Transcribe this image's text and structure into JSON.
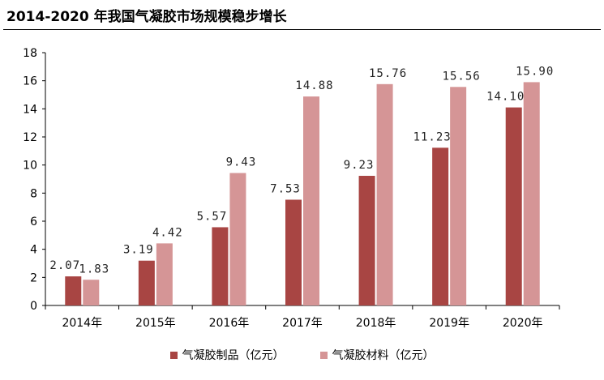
{
  "chart_data": {
    "type": "bar",
    "title": "2014-2020 年我国气凝胶市场规模稳步增长",
    "categories": [
      "2014年",
      "2015年",
      "2016年",
      "2017年",
      "2018年",
      "2019年",
      "2020年"
    ],
    "series": [
      {
        "name": "气凝胶制品（亿元）",
        "color": "#A84543",
        "values": [
          2.07,
          3.19,
          5.57,
          7.53,
          9.23,
          11.23,
          14.1
        ],
        "labels": [
          "2.07",
          "3.19",
          "5.57",
          "7.53",
          "9.23",
          "11.23",
          "14.10"
        ]
      },
      {
        "name": "气凝胶材料（亿元）",
        "color": "#D59596",
        "values": [
          1.83,
          4.42,
          9.43,
          14.88,
          15.76,
          15.56,
          15.9
        ],
        "labels": [
          "1.83",
          "4.42",
          "9.43",
          "14.88",
          "15.76",
          "15.56",
          "15.90"
        ]
      }
    ],
    "ylim": [
      0,
      18
    ],
    "yticks": [
      0,
      2,
      4,
      6,
      8,
      10,
      12,
      14,
      16,
      18
    ],
    "xlabel": "",
    "ylabel": "",
    "grid": false,
    "legend": "bottom"
  }
}
